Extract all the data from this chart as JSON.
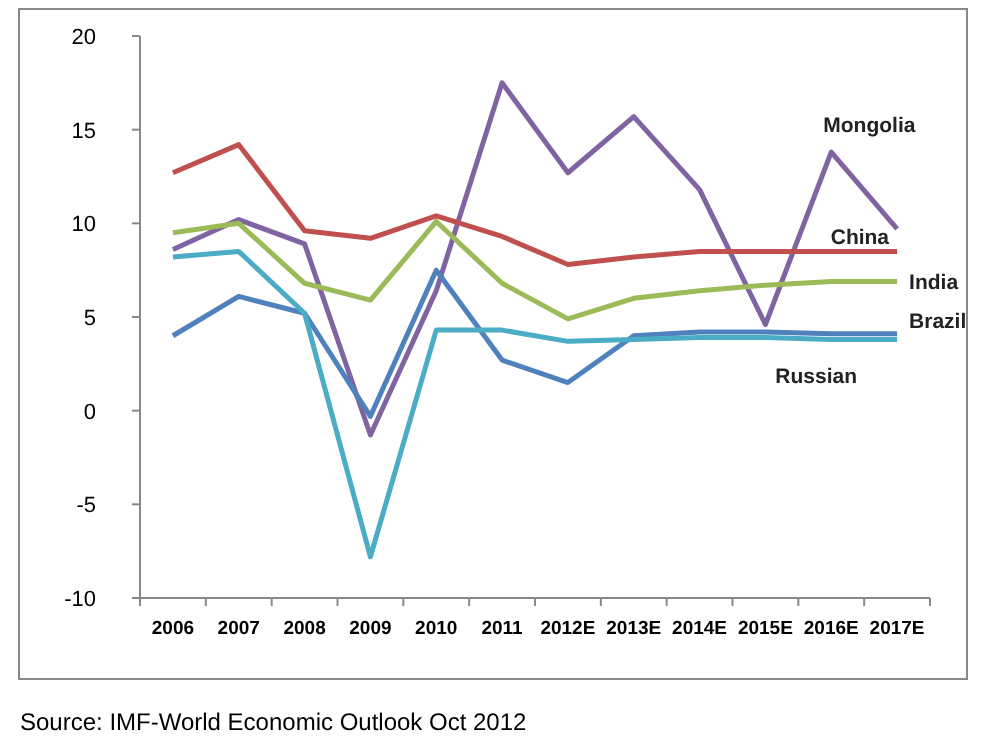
{
  "chart_data": {
    "type": "line",
    "categories": [
      "2006",
      "2007",
      "2008",
      "2009",
      "2010",
      "2011",
      "2012E",
      "2013E",
      "2014E",
      "2015E",
      "2016E",
      "2017E"
    ],
    "ylim": [
      -10,
      20
    ],
    "yticks": [
      -10,
      -5,
      0,
      5,
      10,
      15,
      20
    ],
    "grid": false,
    "legend": false,
    "marker": "none",
    "line_style": "solid",
    "series": [
      {
        "name": "Mongolia",
        "color": "#8064a2",
        "values": [
          8.6,
          10.2,
          8.9,
          -1.3,
          6.4,
          17.5,
          12.7,
          15.7,
          11.8,
          4.6,
          13.8,
          9.7
        ]
      },
      {
        "name": "China",
        "color": "#c0504d",
        "values": [
          12.7,
          14.2,
          9.6,
          9.2,
          10.4,
          9.3,
          7.8,
          8.2,
          8.5,
          8.5,
          8.5,
          8.5
        ]
      },
      {
        "name": "India",
        "color": "#9bbb59",
        "values": [
          9.5,
          10.0,
          6.8,
          5.9,
          10.1,
          6.8,
          4.9,
          6.0,
          6.4,
          6.7,
          6.9,
          6.9
        ]
      },
      {
        "name": "Brazil",
        "color": "#4f81bd",
        "values": [
          4.0,
          6.1,
          5.2,
          -0.3,
          7.5,
          2.7,
          1.5,
          4.0,
          4.2,
          4.2,
          4.1,
          4.1
        ]
      },
      {
        "name": "Russian",
        "color": "#4bacc6",
        "values": [
          8.2,
          8.5,
          5.2,
          -7.8,
          4.3,
          4.3,
          3.7,
          3.8,
          3.9,
          3.9,
          3.8,
          3.8
        ]
      }
    ],
    "annotations": [
      "Source: IMF-World Economic Outlook Oct 2012"
    ]
  }
}
